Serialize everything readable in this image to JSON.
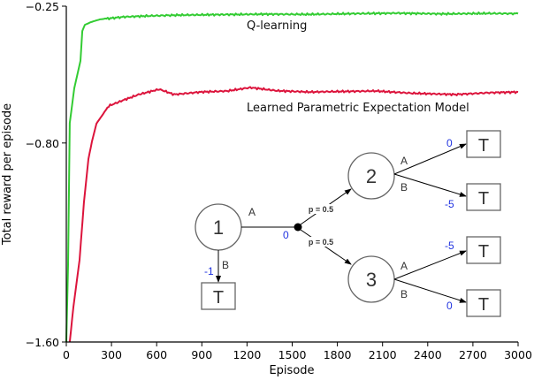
{
  "chart_data": {
    "type": "line",
    "title": "",
    "xlabel": "Episode",
    "ylabel": "Total reward per episode",
    "xlim": [
      0,
      3000
    ],
    "ylim": [
      -1.6,
      -0.25
    ],
    "xticks": [
      0,
      300,
      600,
      900,
      1200,
      1500,
      1800,
      2100,
      2400,
      2700,
      3000
    ],
    "yticks": [
      -1.6,
      -0.8,
      -0.25
    ],
    "ytick_labels": [
      "−1.60",
      "−0.80",
      "−0.25"
    ],
    "grid": false,
    "legend": "inline text labels",
    "series": [
      {
        "name": "Q-learning",
        "color": "#33cc33",
        "x": [
          0,
          12,
          23,
          53,
          94,
          106,
          123,
          164,
          223,
          380,
          550,
          734,
          1000,
          1321,
          1600,
          1900,
          2200,
          2500,
          2800,
          3000
        ],
        "values": [
          -1.6,
          -1.29,
          -0.72,
          -0.58,
          -0.47,
          -0.35,
          -0.325,
          -0.314,
          -0.303,
          -0.293,
          -0.289,
          -0.286,
          -0.284,
          -0.282,
          -0.283,
          -0.28,
          -0.278,
          -0.281,
          -0.279,
          -0.28
        ]
      },
      {
        "name": "Learned Parametric Expectation Model",
        "color": "#dc143c",
        "x": [
          23,
          47,
          88,
          117,
          147,
          170,
          200,
          282,
          382,
          481,
          617,
          716,
          892,
          1069,
          1221,
          1400,
          1615,
          1800,
          2055,
          2300,
          2584,
          2800,
          3000
        ],
        "values": [
          -1.6,
          -1.46,
          -1.27,
          -1.04,
          -0.865,
          -0.794,
          -0.722,
          -0.651,
          -0.627,
          -0.605,
          -0.584,
          -0.605,
          -0.595,
          -0.591,
          -0.577,
          -0.59,
          -0.595,
          -0.593,
          -0.591,
          -0.6,
          -0.605,
          -0.598,
          -0.595
        ]
      }
    ],
    "annotations": [
      "Q-learning",
      "Learned Parametric Expectation Model"
    ]
  },
  "axes": {
    "xlabel": "Episode",
    "ylabel": "Total reward per episode",
    "xtick_labels": [
      "0",
      "300",
      "600",
      "900",
      "1200",
      "1500",
      "1800",
      "2100",
      "2400",
      "2700",
      "3000"
    ],
    "ytick_labels": [
      "−0.25",
      "−0.80",
      "−1.60"
    ]
  },
  "labels": {
    "q_learning": "Q-learning",
    "lpem": "Learned Parametric Expectation Model"
  },
  "diagram": {
    "states": [
      "1",
      "2",
      "3"
    ],
    "terminal": "T",
    "actions": {
      "a": "A",
      "b": "B"
    },
    "rewards": {
      "s1_a": "0",
      "s1_b": "-1",
      "s2_a": "0",
      "s2_b": "-5",
      "s3_a": "-5",
      "s3_b": "0"
    },
    "probabilities": {
      "to_s2": "p = 0.5",
      "to_s3": "p = 0.5"
    },
    "colors": {
      "reward": "#2033e0",
      "node_stroke": "#666666",
      "edge": "#000000"
    }
  }
}
